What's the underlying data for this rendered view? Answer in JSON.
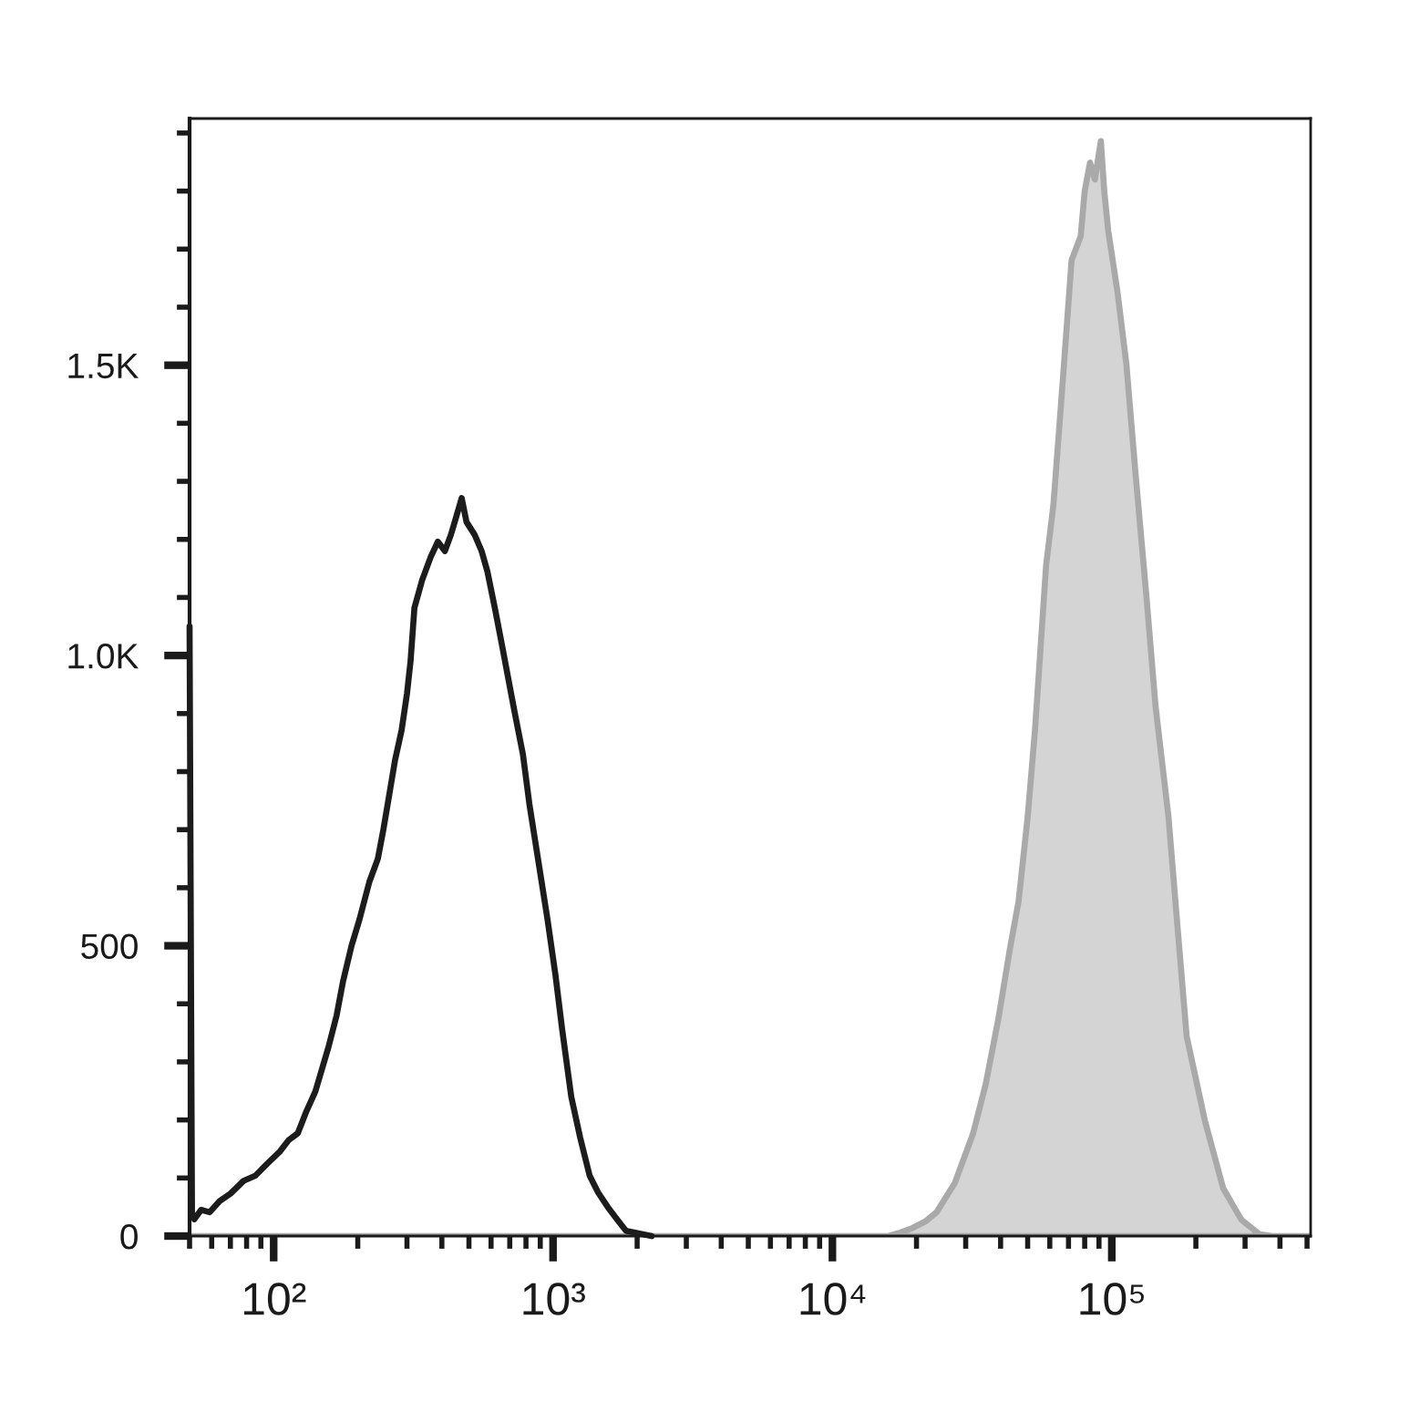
{
  "chart_data": {
    "type": "line",
    "log": "x",
    "xlim": [
      50,
      515000
    ],
    "ylim": [
      0,
      1925
    ],
    "xticks": [
      {
        "value": 50,
        "label": null
      },
      {
        "value": 60,
        "label": null
      },
      {
        "value": 70,
        "label": null
      },
      {
        "value": 80,
        "label": null
      },
      {
        "value": 90,
        "label": null
      },
      {
        "value": 100,
        "label": "10²"
      },
      {
        "value": 200,
        "label": null
      },
      {
        "value": 300,
        "label": null
      },
      {
        "value": 400,
        "label": null
      },
      {
        "value": 500,
        "label": null
      },
      {
        "value": 600,
        "label": null
      },
      {
        "value": 700,
        "label": null
      },
      {
        "value": 800,
        "label": null
      },
      {
        "value": 900,
        "label": null
      },
      {
        "value": 1000,
        "label": "10³"
      },
      {
        "value": 2000,
        "label": null
      },
      {
        "value": 3000,
        "label": null
      },
      {
        "value": 4000,
        "label": null
      },
      {
        "value": 5000,
        "label": null
      },
      {
        "value": 6000,
        "label": null
      },
      {
        "value": 7000,
        "label": null
      },
      {
        "value": 8000,
        "label": null
      },
      {
        "value": 9000,
        "label": null
      },
      {
        "value": 10000,
        "label": "10⁴"
      },
      {
        "value": 20000,
        "label": null
      },
      {
        "value": 30000,
        "label": null
      },
      {
        "value": 40000,
        "label": null
      },
      {
        "value": 50000,
        "label": null
      },
      {
        "value": 60000,
        "label": null
      },
      {
        "value": 70000,
        "label": null
      },
      {
        "value": 80000,
        "label": null
      },
      {
        "value": 90000,
        "label": null
      },
      {
        "value": 100000,
        "label": "10⁵"
      },
      {
        "value": 200000,
        "label": null
      },
      {
        "value": 300000,
        "label": null
      },
      {
        "value": 400000,
        "label": null
      },
      {
        "value": 500000,
        "label": null
      }
    ],
    "yticks": [
      0,
      {
        "value": 100,
        "label": null
      },
      {
        "value": 200,
        "label": null
      },
      {
        "value": 300,
        "label": null
      },
      {
        "value": 400,
        "label": null
      },
      500,
      {
        "value": 600,
        "label": null
      },
      {
        "value": 700,
        "label": null
      },
      {
        "value": 800,
        "label": null
      },
      {
        "value": 900,
        "label": null
      },
      {
        "value": 1000,
        "label": "1.0K"
      },
      {
        "value": 1100,
        "label": null
      },
      {
        "value": 1200,
        "label": null
      },
      {
        "value": 1300,
        "label": null
      },
      {
        "value": 1400,
        "label": null
      },
      {
        "value": 1500,
        "label": "1.5K"
      },
      {
        "value": 1600,
        "label": null
      },
      {
        "value": 1700,
        "label": null
      },
      {
        "value": 1800,
        "label": null
      },
      {
        "value": 1900,
        "label": null
      }
    ],
    "series": [
      {
        "type": "area",
        "color": "#a9a9a9",
        "x": [
          50,
          15880,
          17500,
          19400,
          21500,
          23600,
          27400,
          31900,
          35400,
          39300,
          43100,
          46400,
          50000,
          53100,
          58200,
          61800,
          66700,
          71800,
          77400,
          80000,
          83600,
          87000,
          91400,
          94000,
          97100,
          104700,
          112800,
          121700,
          133100,
          143500,
          159600,
          171900,
          185400,
          215400,
          250600,
          291100,
          338100,
          375800,
          515000
        ],
        "values": [
          0,
          0,
          6,
          14,
          25,
          41,
          91,
          177,
          262,
          375,
          492,
          577,
          722,
          871,
          1155,
          1259,
          1470,
          1681,
          1722,
          1800,
          1849,
          1820,
          1886,
          1800,
          1732,
          1628,
          1502,
          1312,
          1101,
          912,
          722,
          533,
          344,
          199,
          82,
          28,
          3,
          0,
          0
        ]
      },
      {
        "color": "#1c1c1c",
        "x": [
          50,
          51,
          52,
          55,
          59,
          64,
          70,
          78,
          86,
          95,
          105,
          113,
          122,
          131,
          141,
          157,
          168,
          177,
          190,
          203,
          220,
          236,
          247,
          258,
          272,
          287,
          300,
          309,
          319,
          340,
          365,
          387,
          410,
          431,
          451,
          471,
          490,
          524,
          555,
          582,
          620,
          656,
          708,
          729,
          780,
          823,
          890,
          955,
          1020,
          1078,
          1162,
          1250,
          1352,
          1450,
          1570,
          1700,
          1825,
          2000,
          2254
        ],
        "values": [
          1050,
          40,
          29,
          45,
          41,
          60,
          73,
          95,
          104,
          125,
          145,
          165,
          177,
          215,
          249,
          325,
          380,
          438,
          500,
          546,
          610,
          650,
          700,
          754,
          820,
          871,
          934,
          990,
          1082,
          1130,
          1170,
          1196,
          1180,
          1208,
          1240,
          1271,
          1230,
          1208,
          1180,
          1145,
          1080,
          1019,
          934,
          902,
          830,
          744,
          640,
          546,
          450,
          356,
          240,
          170,
          104,
          75,
          50,
          28,
          9,
          5,
          0
        ]
      }
    ]
  }
}
